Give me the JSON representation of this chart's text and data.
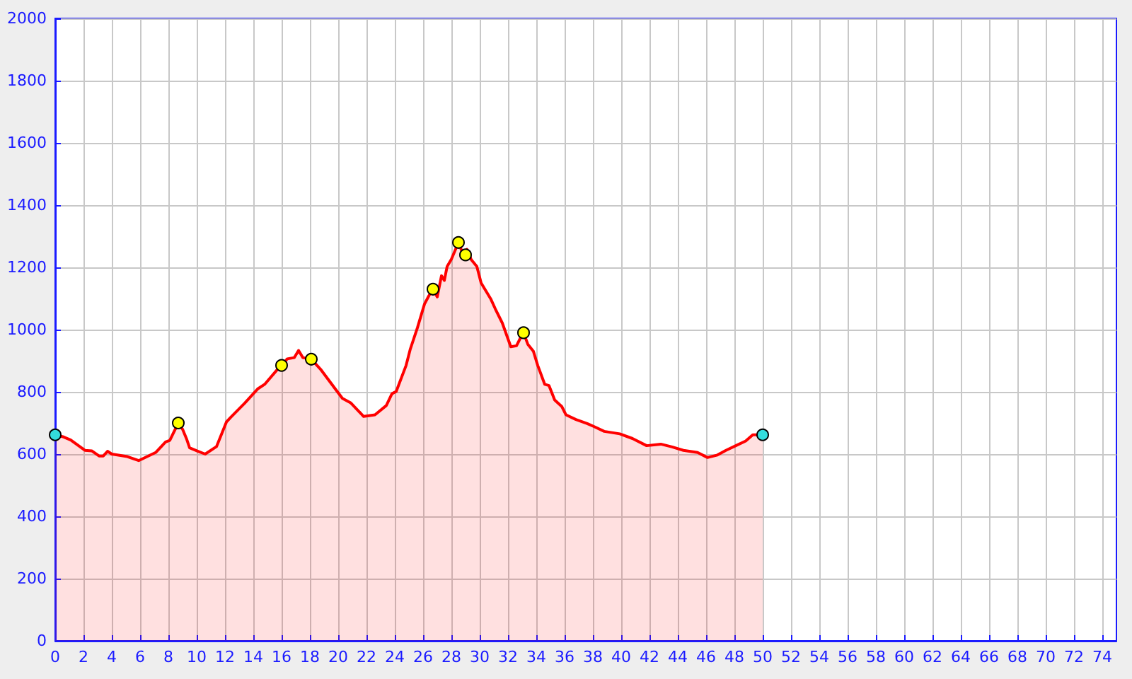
{
  "chart_data": {
    "type": "area",
    "xlim": [
      0,
      75
    ],
    "ylim": [
      0,
      2000
    ],
    "xticks": [
      0,
      2,
      4,
      6,
      8,
      10,
      12,
      14,
      16,
      18,
      20,
      22,
      24,
      26,
      28,
      30,
      32,
      34,
      36,
      38,
      40,
      42,
      44,
      46,
      48,
      50,
      52,
      54,
      56,
      58,
      60,
      62,
      64,
      66,
      68,
      70,
      72,
      74
    ],
    "yticks": [
      0,
      200,
      400,
      600,
      800,
      1000,
      1200,
      1400,
      1600,
      1800,
      2000
    ],
    "grid": true,
    "series": [
      {
        "color": "#ff0000",
        "line_style": "solid",
        "x": [
          0,
          0.6,
          1.1,
          2.1,
          2.6,
          3.1,
          3.4,
          3.7,
          4.0,
          5.1,
          5.9,
          7.1,
          7.8,
          8.1,
          8.7,
          9.0,
          9.3,
          9.5,
          10.1,
          10.6,
          11.4,
          12.1,
          12.4,
          13.4,
          14.3,
          14.8,
          15.8,
          16.0,
          16.4,
          16.9,
          17.2,
          17.5,
          18.1,
          18.8,
          19.8,
          20.3,
          20.9,
          21.8,
          22.6,
          23.4,
          23.8,
          24.1,
          24.8,
          25.1,
          25.6,
          26.1,
          26.4,
          26.7,
          27.0,
          27.3,
          27.5,
          27.7,
          28.0,
          28.5,
          28.8,
          29.0,
          29.1,
          29.4,
          29.8,
          30.1,
          30.8,
          31.1,
          31.6,
          31.9,
          32.2,
          32.6,
          32.9,
          33.1,
          33.4,
          33.8,
          34.1,
          34.6,
          34.9,
          35.3,
          35.8,
          36.1,
          36.8,
          37.6,
          38.1,
          38.8,
          39.9,
          40.8,
          41.8,
          42.8,
          43.6,
          44.4,
          45.4,
          46.1,
          46.8,
          47.4,
          48.1,
          48.8,
          49.3,
          50.0
        ],
        "values": [
          662,
          655,
          645,
          612,
          610,
          594,
          594,
          609,
          600,
          592,
          579,
          605,
          639,
          644,
          700,
          680,
          647,
          620,
          609,
          600,
          624,
          703,
          718,
          764,
          809,
          824,
          877,
          885,
          906,
          910,
          933,
          910,
          905,
          870,
          809,
          779,
          764,
          721,
          726,
          756,
          794,
          801,
          885,
          938,
          1006,
          1082,
          1108,
          1130,
          1105,
          1173,
          1158,
          1203,
          1226,
          1280,
          1245,
          1240,
          1258,
          1225,
          1203,
          1150,
          1097,
          1067,
          1021,
          983,
          945,
          948,
          975,
          990,
          953,
          930,
          885,
          824,
          820,
          774,
          753,
          726,
          711,
          698,
          688,
          673,
          665,
          650,
          627,
          632,
          623,
          612,
          605,
          589,
          597,
          612,
          627,
          642,
          662,
          662
        ]
      },
      {
        "type": "scatter",
        "color": "#ffff00",
        "marker": "circle",
        "x": [
          8.7,
          16.0,
          18.1,
          26.7,
          28.5,
          29.0,
          33.1
        ],
        "values": [
          700,
          885,
          905,
          1130,
          1280,
          1240,
          990
        ]
      },
      {
        "type": "scatter",
        "color": "#33dddd",
        "marker": "circle",
        "x": [
          0,
          50.0
        ],
        "values": [
          662,
          662
        ]
      }
    ]
  }
}
